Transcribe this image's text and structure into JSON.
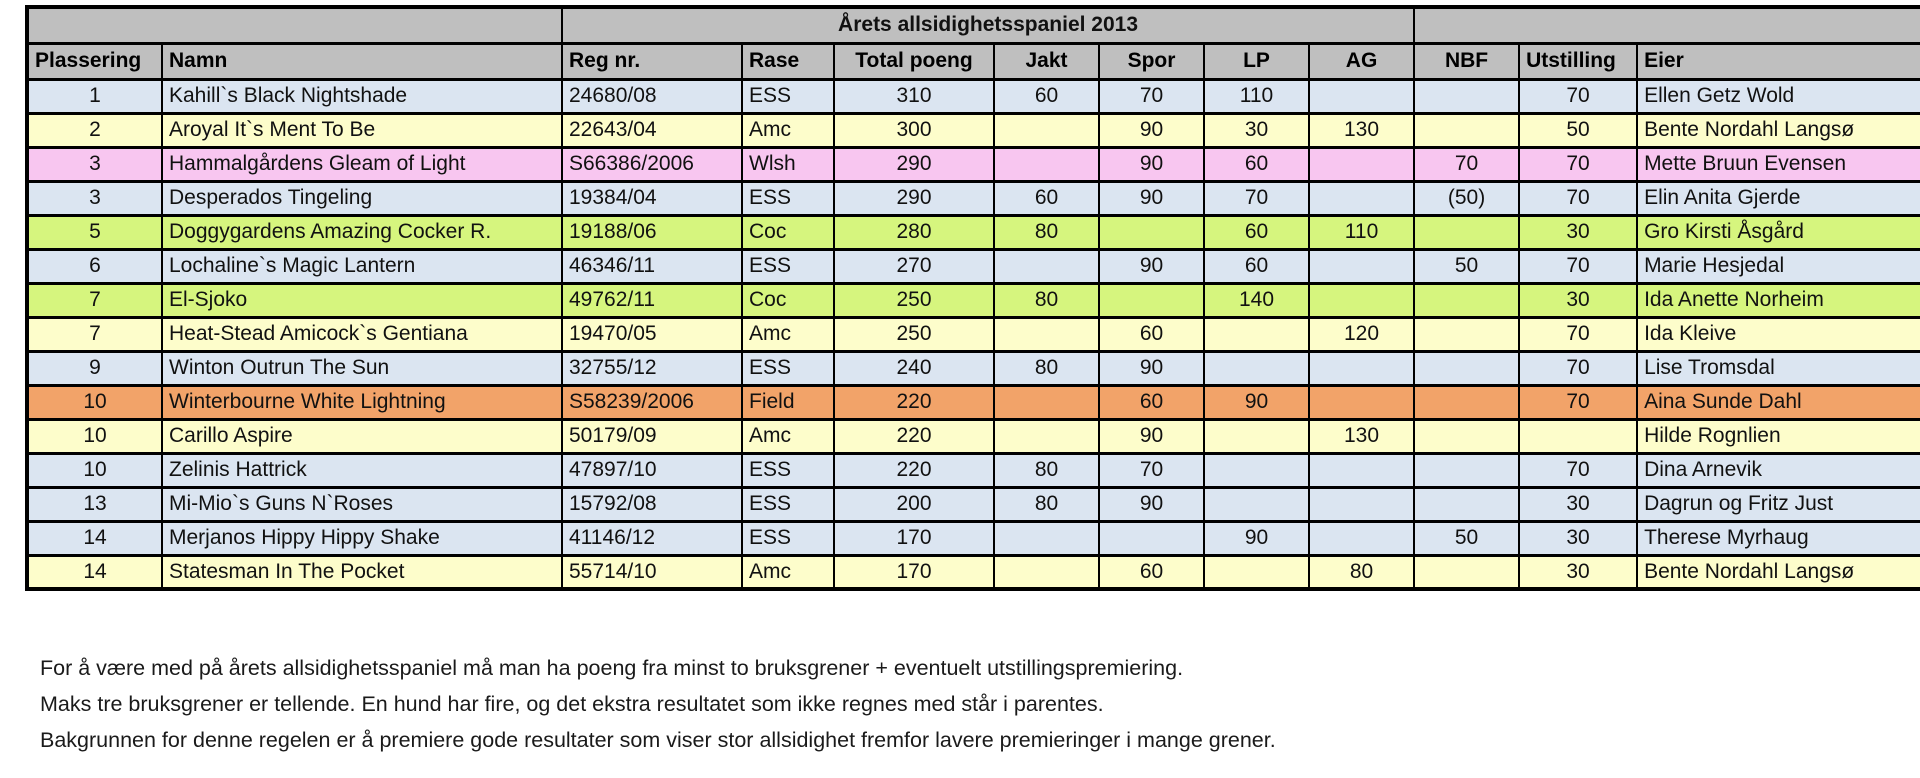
{
  "title": "Årets allsidighetsspaniel 2013",
  "colors": {
    "header_gray": "#bfbfbf",
    "blue": "#dbe5f1",
    "yellow": "#fdfdcb",
    "pink": "#f8c6f0",
    "green": "#d6f57e",
    "orange": "#f2a369"
  },
  "table": {
    "columns": [
      {
        "key": "plassering",
        "label": "Plassering",
        "halign": "left",
        "align": "center"
      },
      {
        "key": "namn",
        "label": "Namn",
        "halign": "left",
        "align": "left"
      },
      {
        "key": "reg",
        "label": "Reg nr.",
        "halign": "left",
        "align": "left"
      },
      {
        "key": "rase",
        "label": "Rase",
        "halign": "left",
        "align": "left"
      },
      {
        "key": "total",
        "label": "Total poeng",
        "halign": "center",
        "align": "center"
      },
      {
        "key": "jakt",
        "label": "Jakt",
        "halign": "center",
        "align": "center"
      },
      {
        "key": "spor",
        "label": "Spor",
        "halign": "center",
        "align": "center"
      },
      {
        "key": "lp",
        "label": "LP",
        "halign": "center",
        "align": "center"
      },
      {
        "key": "ag",
        "label": "AG",
        "halign": "center",
        "align": "center"
      },
      {
        "key": "nbf",
        "label": "NBF",
        "halign": "center",
        "align": "center"
      },
      {
        "key": "utstilling",
        "label": "Utstilling",
        "halign": "left",
        "align": "center"
      },
      {
        "key": "eier",
        "label": "Eier",
        "halign": "left",
        "align": "left"
      }
    ],
    "rows": [
      {
        "plassering": "1",
        "namn": "Kahill`s Black Nightshade",
        "reg": "24680/08",
        "rase": "ESS",
        "total": "310",
        "jakt": "60",
        "spor": "70",
        "lp": "110",
        "ag": "",
        "nbf": "",
        "utstilling": "70",
        "eier": "Ellen Getz Wold",
        "color": "blue"
      },
      {
        "plassering": "2",
        "namn": "Aroyal It`s Ment To Be",
        "reg": "22643/04",
        "rase": "Amc",
        "total": "300",
        "jakt": "",
        "spor": "90",
        "lp": "30",
        "ag": "130",
        "nbf": "",
        "utstilling": "50",
        "eier": "Bente Nordahl Langsø",
        "color": "yellow"
      },
      {
        "plassering": "3",
        "namn": "Hammalgårdens Gleam of Light",
        "reg": "S66386/2006",
        "rase": "Wlsh",
        "total": "290",
        "jakt": "",
        "spor": "90",
        "lp": "60",
        "ag": "",
        "nbf": "70",
        "utstilling": "70",
        "eier": "Mette Bruun Evensen",
        "color": "pink"
      },
      {
        "plassering": "3",
        "namn": "Desperados Tingeling",
        "reg": "19384/04",
        "rase": "ESS",
        "total": "290",
        "jakt": "60",
        "spor": "90",
        "lp": "70",
        "ag": "",
        "nbf": "(50)",
        "utstilling": "70",
        "eier": "Elin Anita Gjerde",
        "color": "blue"
      },
      {
        "plassering": "5",
        "namn": "Doggygardens Amazing Cocker R.",
        "reg": "19188/06",
        "rase": "Coc",
        "total": "280",
        "jakt": "80",
        "spor": "",
        "lp": "60",
        "ag": "110",
        "nbf": "",
        "utstilling": "30",
        "eier": "Gro Kirsti Åsgård",
        "color": "green"
      },
      {
        "plassering": "6",
        "namn": "Lochaline`s Magic Lantern",
        "reg": "46346/11",
        "rase": "ESS",
        "total": "270",
        "jakt": "",
        "spor": "90",
        "lp": "60",
        "ag": "",
        "nbf": "50",
        "utstilling": "70",
        "eier": "Marie Hesjedal",
        "color": "blue"
      },
      {
        "plassering": "7",
        "namn": "El-Sjoko",
        "reg": "49762/11",
        "rase": "Coc",
        "total": "250",
        "jakt": "80",
        "spor": "",
        "lp": "140",
        "ag": "",
        "nbf": "",
        "utstilling": "30",
        "eier": "Ida Anette Norheim",
        "color": "green"
      },
      {
        "plassering": "7",
        "namn": "Heat-Stead Amicock`s Gentiana",
        "reg": "19470/05",
        "rase": "Amc",
        "total": "250",
        "jakt": "",
        "spor": "60",
        "lp": "",
        "ag": "120",
        "nbf": "",
        "utstilling": "70",
        "eier": "Ida Kleive",
        "color": "yellow"
      },
      {
        "plassering": "9",
        "namn": "Winton Outrun The Sun",
        "reg": "32755/12",
        "rase": "ESS",
        "total": "240",
        "jakt": "80",
        "spor": "90",
        "lp": "",
        "ag": "",
        "nbf": "",
        "utstilling": "70",
        "eier": "Lise Tromsdal",
        "color": "blue"
      },
      {
        "plassering": "10",
        "namn": "Winterbourne White Lightning",
        "reg": "S58239/2006",
        "rase": "Field",
        "total": "220",
        "jakt": "",
        "spor": "60",
        "lp": "90",
        "ag": "",
        "nbf": "",
        "utstilling": "70",
        "eier": "Aina Sunde Dahl",
        "color": "orange"
      },
      {
        "plassering": "10",
        "namn": "Carillo Aspire",
        "reg": "50179/09",
        "rase": "Amc",
        "total": "220",
        "jakt": "",
        "spor": "90",
        "lp": "",
        "ag": "130",
        "nbf": "",
        "utstilling": "",
        "eier": "Hilde Rognlien",
        "color": "yellow"
      },
      {
        "plassering": "10",
        "namn": "Zelinis Hattrick",
        "reg": "47897/10",
        "rase": "ESS",
        "total": "220",
        "jakt": "80",
        "spor": "70",
        "lp": "",
        "ag": "",
        "nbf": "",
        "utstilling": "70",
        "eier": "Dina Arnevik",
        "color": "blue"
      },
      {
        "plassering": "13",
        "namn": "Mi-Mio`s Guns N`Roses",
        "reg": "15792/08",
        "rase": "ESS",
        "total": "200",
        "jakt": "80",
        "spor": "90",
        "lp": "",
        "ag": "",
        "nbf": "",
        "utstilling": "30",
        "eier": "Dagrun og Fritz Just",
        "color": "blue"
      },
      {
        "plassering": "14",
        "namn": "Merjanos Hippy Hippy Shake",
        "reg": "41146/12",
        "rase": "ESS",
        "total": "170",
        "jakt": "",
        "spor": "",
        "lp": "90",
        "ag": "",
        "nbf": "50",
        "utstilling": "30",
        "eier": "Therese Myrhaug",
        "color": "blue"
      },
      {
        "plassering": "14",
        "namn": "Statesman In The Pocket",
        "reg": "55714/10",
        "rase": "Amc",
        "total": "170",
        "jakt": "",
        "spor": "60",
        "lp": "",
        "ag": "80",
        "nbf": "",
        "utstilling": "30",
        "eier": "Bente Nordahl Langsø",
        "color": "yellow"
      }
    ]
  },
  "footer": {
    "lines": [
      "For å være med på årets allsidighetsspaniel må man ha poeng fra minst to bruksgrener + eventuelt utstillingspremiering.",
      "Maks tre bruksgrener er tellende. En hund har fire, og det ekstra resultatet som ikke regnes med står i parentes.",
      "Bakgrunnen for denne regelen er å premiere gode resultater som viser stor allsidighet fremfor lavere premieringer i mange grener."
    ]
  }
}
